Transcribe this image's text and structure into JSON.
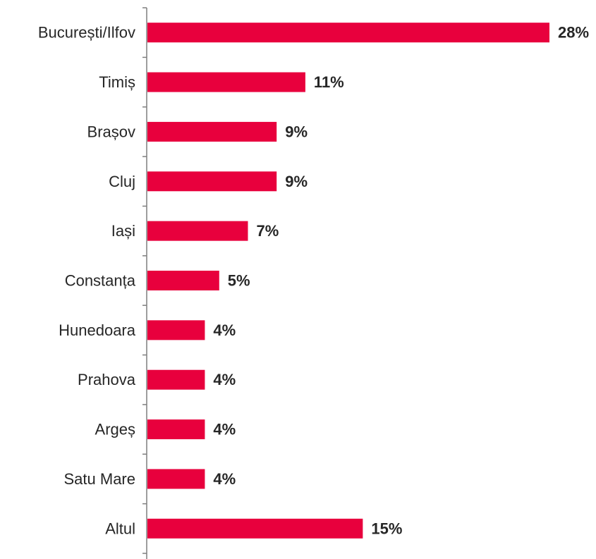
{
  "chart_data": {
    "type": "bar",
    "orientation": "horizontal",
    "categories": [
      "București/Ilfov",
      "Timiș",
      "Brașov",
      "Cluj",
      "Iași",
      "Constanța",
      "Hunedoara",
      "Prahova",
      "Argeș",
      "Satu Mare",
      "Altul"
    ],
    "values": [
      28,
      11,
      9,
      9,
      7,
      5,
      4,
      4,
      4,
      4,
      15
    ],
    "value_labels": [
      "28%",
      "11%",
      "9%",
      "9%",
      "7%",
      "5%",
      "4%",
      "4%",
      "4%",
      "4%",
      "15%"
    ],
    "unit": "%",
    "xlim": [
      0,
      28
    ],
    "grid": false,
    "legend": "none",
    "bar_color": "#e8003d"
  }
}
